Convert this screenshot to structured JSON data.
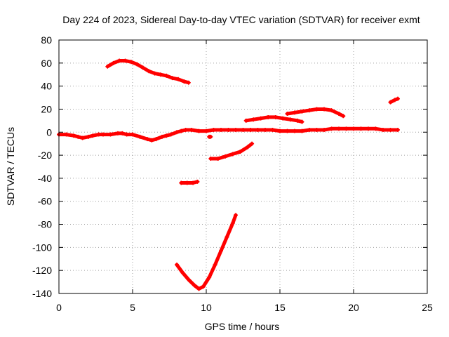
{
  "chart_data": {
    "type": "scatter",
    "title": "Day 224 of 2023, Sidereal Day-to-day VTEC variation (SDTVAR) for receiver exmt",
    "xlabel": "GPS time / hours",
    "ylabel": "SDTVAR / TECUs",
    "xlim": [
      0,
      25
    ],
    "ylim": [
      -140,
      80
    ],
    "xticks": [
      0,
      5,
      10,
      15,
      20,
      25
    ],
    "yticks": [
      -140,
      -120,
      -100,
      -80,
      -60,
      -40,
      -20,
      0,
      20,
      40,
      60,
      80
    ],
    "grid": true,
    "legend": "none",
    "marker_color": "#ff0000",
    "series": [
      {
        "points": [
          [
            0,
            -2
          ],
          [
            0.5,
            -2
          ],
          [
            1,
            -3
          ],
          [
            1.3,
            -4
          ],
          [
            1.6,
            -5
          ],
          [
            2,
            -4
          ],
          [
            2.3,
            -3
          ],
          [
            2.7,
            -2
          ],
          [
            3,
            -2
          ],
          [
            3.5,
            -2
          ],
          [
            4,
            -1
          ],
          [
            4.3,
            -1
          ],
          [
            4.6,
            -2
          ],
          [
            5,
            -2
          ],
          [
            5.5,
            -4
          ],
          [
            6,
            -6
          ],
          [
            6.3,
            -7
          ],
          [
            6.6,
            -6
          ],
          [
            7,
            -4
          ],
          [
            7.3,
            -3
          ],
          [
            7.6,
            -2
          ],
          [
            8,
            0
          ],
          [
            8.3,
            1
          ],
          [
            8.6,
            2
          ],
          [
            9,
            2
          ],
          [
            9.5,
            1
          ],
          [
            10,
            1
          ],
          [
            10.5,
            2
          ],
          [
            11,
            2
          ],
          [
            11.5,
            2
          ],
          [
            12,
            2
          ],
          [
            12.5,
            2
          ],
          [
            13,
            2
          ],
          [
            13.5,
            2
          ],
          [
            14,
            2
          ],
          [
            14.5,
            2
          ],
          [
            15,
            1
          ],
          [
            15.5,
            1
          ],
          [
            16,
            1
          ],
          [
            16.5,
            1
          ],
          [
            17,
            2
          ],
          [
            17.5,
            2
          ],
          [
            18,
            2
          ],
          [
            18.5,
            3
          ],
          [
            19,
            3
          ],
          [
            19.5,
            3
          ],
          [
            20,
            3
          ],
          [
            20.5,
            3
          ],
          [
            21,
            3
          ],
          [
            21.5,
            3
          ],
          [
            22,
            2
          ],
          [
            22.5,
            2
          ],
          [
            23,
            2
          ]
        ]
      },
      {
        "points": [
          [
            3.3,
            57
          ],
          [
            3.7,
            60
          ],
          [
            4.1,
            62
          ],
          [
            4.5,
            62
          ],
          [
            4.9,
            61
          ],
          [
            5.3,
            59
          ],
          [
            5.7,
            56
          ],
          [
            6.1,
            53
          ],
          [
            6.5,
            51
          ],
          [
            6.9,
            50
          ],
          [
            7.3,
            49
          ],
          [
            7.7,
            47
          ],
          [
            8.1,
            46
          ],
          [
            8.5,
            44
          ],
          [
            8.8,
            43
          ]
        ]
      },
      {
        "points": [
          [
            10.3,
            -23
          ],
          [
            10.8,
            -23
          ],
          [
            11.3,
            -21
          ],
          [
            11.8,
            -19
          ],
          [
            12.3,
            -17
          ],
          [
            12.8,
            -13
          ],
          [
            13.1,
            -10
          ]
        ]
      },
      {
        "points": [
          [
            8.3,
            -44
          ],
          [
            8.7,
            -44
          ],
          [
            9.1,
            -44
          ],
          [
            9.4,
            -43
          ]
        ]
      },
      {
        "points": [
          [
            8,
            -115
          ],
          [
            8.4,
            -122
          ],
          [
            8.8,
            -128
          ],
          [
            9.2,
            -133
          ],
          [
            9.5,
            -136
          ],
          [
            9.8,
            -134
          ],
          [
            10.2,
            -126
          ],
          [
            10.6,
            -115
          ],
          [
            11,
            -103
          ],
          [
            11.4,
            -91
          ],
          [
            11.8,
            -79
          ],
          [
            12,
            -72
          ]
        ]
      },
      {
        "points": [
          [
            12.7,
            10
          ],
          [
            13.2,
            11
          ],
          [
            13.7,
            12
          ],
          [
            14.2,
            13
          ],
          [
            14.7,
            13
          ],
          [
            15.2,
            12
          ],
          [
            15.7,
            11
          ],
          [
            16.2,
            10
          ],
          [
            16.5,
            9
          ]
        ]
      },
      {
        "points": [
          [
            15.5,
            16
          ],
          [
            16,
            17
          ],
          [
            16.5,
            18
          ],
          [
            17,
            19
          ],
          [
            17.5,
            20
          ],
          [
            18,
            20
          ],
          [
            18.5,
            19
          ],
          [
            19,
            16
          ],
          [
            19.3,
            14
          ]
        ]
      },
      {
        "points": [
          [
            22.5,
            26
          ],
          [
            22.8,
            28
          ],
          [
            23,
            29
          ]
        ]
      },
      {
        "points": [
          [
            10.2,
            -4
          ],
          [
            10.3,
            -4
          ]
        ]
      }
    ]
  }
}
